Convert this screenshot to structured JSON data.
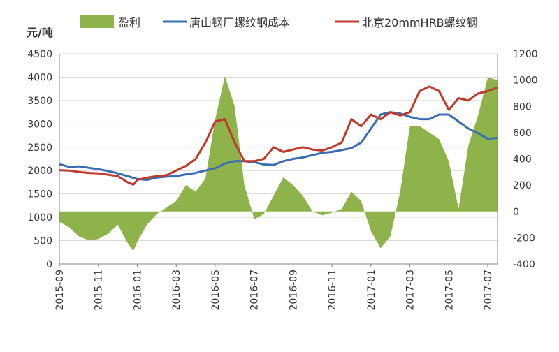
{
  "chart_data": {
    "type": "line",
    "y_unit_label": "元/吨",
    "legend": {
      "placement": "top",
      "items": [
        {
          "label": "盈利",
          "kind": "area",
          "color": "#8db34a"
        },
        {
          "label": "唐山钢厂螺纹钢成本",
          "kind": "line",
          "color": "#3b6db3"
        },
        {
          "label": "北京20mmHRB螺纹钢",
          "kind": "line",
          "color": "#c0392b"
        }
      ]
    },
    "x_axis": {
      "ticks": [
        "2015-09",
        "2015-11",
        "2016-01",
        "2016-03",
        "2016-05",
        "2016-07",
        "2016-09",
        "2016-11",
        "2017-01",
        "2017-03",
        "2017-05",
        "2017-07"
      ],
      "range": [
        0,
        22.5
      ]
    },
    "y_left": {
      "range": [
        0,
        4500
      ],
      "ticks": [
        0,
        500,
        1000,
        1500,
        2000,
        2500,
        3000,
        3500,
        4000,
        4500
      ]
    },
    "y_right": {
      "range": [
        -400,
        1200
      ],
      "ticks": [
        -400,
        -200,
        0,
        200,
        400,
        600,
        800,
        1000,
        1200
      ]
    },
    "grid": "horizontal",
    "series": [
      {
        "name": "盈利",
        "axis": "right",
        "type": "area",
        "color": "#8db34a",
        "x": [
          0,
          0.5,
          1,
          1.5,
          2,
          2.5,
          3,
          3.5,
          3.8,
          4,
          4.5,
          5,
          5.5,
          6,
          6.5,
          7,
          7.5,
          8,
          8.5,
          9,
          9.5,
          9.9,
          10,
          10.5,
          11,
          11.5,
          12,
          12.5,
          13,
          13.5,
          14,
          14.5,
          15,
          15.5,
          16,
          16.5,
          17,
          17.5,
          17.8,
          18,
          18.5,
          19,
          19.5,
          20,
          20.5,
          21,
          21.5,
          22,
          22.5
        ],
        "values": [
          -80,
          -120,
          -190,
          -220,
          -210,
          -170,
          -100,
          -240,
          -300,
          -230,
          -100,
          -20,
          30,
          80,
          200,
          150,
          250,
          700,
          1030,
          800,
          200,
          0,
          -60,
          -20,
          120,
          260,
          200,
          120,
          0,
          -30,
          -10,
          20,
          150,
          80,
          -150,
          -280,
          -190,
          150,
          450,
          650,
          650,
          600,
          550,
          380,
          20,
          500,
          730,
          1020,
          1000
        ]
      },
      {
        "name": "唐山钢厂螺纹钢成本",
        "axis": "left",
        "type": "line",
        "color": "#3b6db3",
        "x": [
          0,
          0.5,
          1,
          1.5,
          2,
          2.5,
          3,
          3.5,
          4,
          4.5,
          5,
          5.5,
          6,
          6.5,
          7,
          7.5,
          8,
          8.5,
          9,
          9.5,
          10,
          10.5,
          11,
          11.5,
          12,
          12.5,
          13,
          13.5,
          14,
          14.5,
          15,
          15.5,
          16,
          16.5,
          17,
          17.5,
          18,
          18.5,
          19,
          19.5,
          20,
          20.5,
          21,
          21.5,
          22,
          22.5
        ],
        "values": [
          2140,
          2080,
          2090,
          2060,
          2030,
          1990,
          1940,
          1880,
          1820,
          1800,
          1850,
          1870,
          1880,
          1920,
          1950,
          2000,
          2050,
          2150,
          2200,
          2200,
          2180,
          2130,
          2120,
          2200,
          2250,
          2280,
          2330,
          2380,
          2400,
          2440,
          2480,
          2600,
          2900,
          3200,
          3250,
          3220,
          3150,
          3100,
          3100,
          3200,
          3200,
          3050,
          2900,
          2800,
          2680,
          2700
        ]
      },
      {
        "name": "北京20mmHRB螺纹钢",
        "axis": "left",
        "type": "line",
        "color": "#c0392b",
        "x": [
          0,
          0.5,
          1,
          1.5,
          2,
          2.5,
          3,
          3.5,
          3.8,
          4,
          4.5,
          5,
          5.5,
          6,
          6.5,
          7,
          7.5,
          8,
          8.5,
          9,
          9.5,
          10,
          10.5,
          11,
          11.5,
          12,
          12.5,
          13,
          13.5,
          14,
          14.5,
          15,
          15.5,
          16,
          16.5,
          17,
          17.5,
          18,
          18.5,
          19,
          19.5,
          20,
          20.5,
          21,
          21.5,
          22,
          22.5
        ],
        "values": [
          2010,
          2000,
          1970,
          1950,
          1940,
          1910,
          1880,
          1750,
          1700,
          1800,
          1850,
          1880,
          1900,
          2000,
          2100,
          2250,
          2600,
          3050,
          3100,
          2600,
          2200,
          2200,
          2250,
          2500,
          2400,
          2450,
          2500,
          2450,
          2430,
          2500,
          2600,
          3100,
          2950,
          3200,
          3100,
          3250,
          3180,
          3250,
          3700,
          3800,
          3700,
          3300,
          3550,
          3500,
          3650,
          3700,
          3780
        ]
      }
    ]
  }
}
